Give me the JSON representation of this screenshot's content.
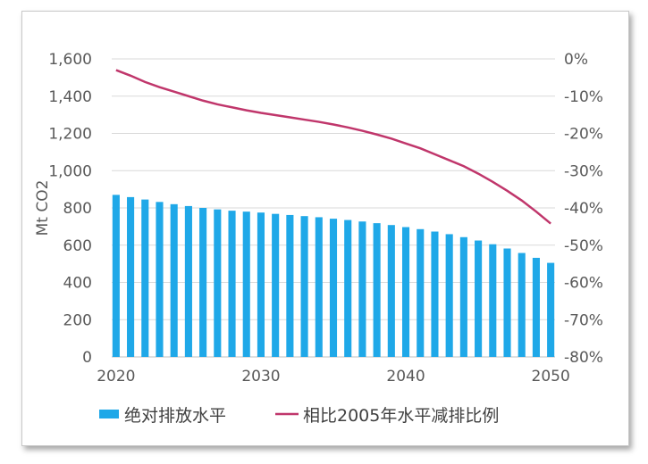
{
  "chart_data": {
    "type": "bar+line",
    "x": [
      2020,
      2021,
      2022,
      2023,
      2024,
      2025,
      2026,
      2027,
      2028,
      2029,
      2030,
      2031,
      2032,
      2033,
      2034,
      2035,
      2036,
      2037,
      2038,
      2039,
      2040,
      2041,
      2042,
      2043,
      2044,
      2045,
      2046,
      2047,
      2048,
      2049,
      2050
    ],
    "xticks": [
      "2020",
      "2030",
      "2040",
      "2050"
    ],
    "ylabel": "Mt CO2",
    "ylim": [
      0,
      1600
    ],
    "yticks": [
      "0",
      "200",
      "400",
      "600",
      "800",
      "1,000",
      "1,200",
      "1,400",
      "1,600"
    ],
    "y2lim": [
      -80,
      0
    ],
    "y2ticks": [
      "0%",
      "-10%",
      "-20%",
      "-30%",
      "-40%",
      "-50%",
      "-60%",
      "-70%",
      "-80%"
    ],
    "grid": true,
    "legend_position": "bottom",
    "series": [
      {
        "name": "绝对排放水平",
        "type": "bar",
        "axis": "left",
        "color": "#1fa8e8",
        "values": [
          870,
          858,
          845,
          832,
          820,
          810,
          800,
          792,
          785,
          780,
          775,
          768,
          762,
          756,
          750,
          742,
          735,
          727,
          718,
          708,
          697,
          686,
          673,
          659,
          643,
          625,
          605,
          582,
          558,
          532,
          505
        ]
      },
      {
        "name": "相比2005年水平减排比例",
        "type": "line",
        "axis": "right",
        "color": "#c0366b",
        "values": [
          -3,
          -4.5,
          -6.2,
          -7.6,
          -8.8,
          -10,
          -11.2,
          -12.2,
          -13,
          -13.8,
          -14.5,
          -15.1,
          -15.7,
          -16.3,
          -16.9,
          -17.6,
          -18.4,
          -19.3,
          -20.3,
          -21.4,
          -22.7,
          -24,
          -25.6,
          -27.2,
          -28.8,
          -30.8,
          -33,
          -35.4,
          -38,
          -41,
          -44.2
        ]
      }
    ]
  }
}
